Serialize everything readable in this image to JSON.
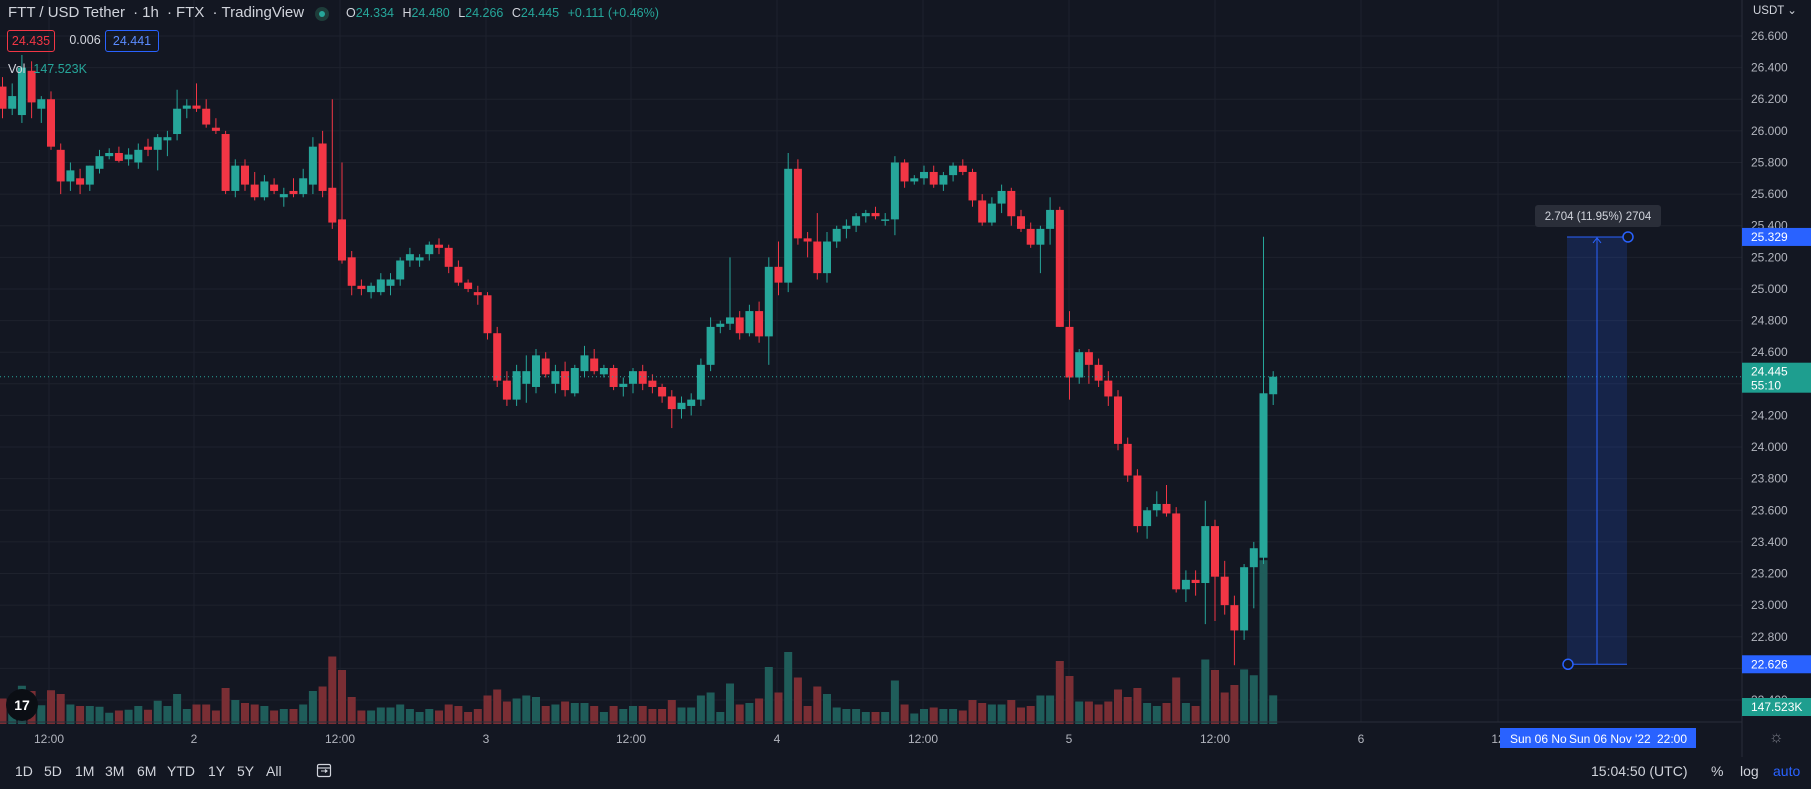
{
  "header": {
    "symbol": "FTT / USD Tether",
    "interval": "1h",
    "exchange": "FTX",
    "source": "TradingView",
    "ohlc": [
      {
        "k": "O",
        "v": "24.334"
      },
      {
        "k": "H",
        "v": "24.480"
      },
      {
        "k": "L",
        "v": "24.266"
      },
      {
        "k": "C",
        "v": "24.445"
      }
    ],
    "change": "+0.111 (+0.46%)",
    "bid": "24.435",
    "spread": "0.006",
    "ask": "24.441",
    "volume_label": "Vol",
    "volume_value": "147.523K"
  },
  "price_axis": {
    "currency": "USDT",
    "ticks": [
      "26.600",
      "26.400",
      "26.200",
      "26.000",
      "25.800",
      "25.600",
      "25.400",
      "25.200",
      "25.000",
      "24.800",
      "24.600",
      "24.400",
      "24.200",
      "24.000",
      "23.800",
      "23.600",
      "23.400",
      "23.200",
      "23.000",
      "22.800",
      "22.600",
      "22.400"
    ],
    "current_price": "24.445",
    "countdown": "55:10",
    "measure_top_label": "25.329",
    "measure_bottom_label": "22.626",
    "volume_label": "147.523K"
  },
  "time_axis": {
    "labels": [
      "12:00",
      "2",
      "12:00",
      "3",
      "12:00",
      "4",
      "12:00",
      "5",
      "12:00",
      "6",
      "12"
    ],
    "crosshair_left": "Sun 06 No",
    "crosshair_right": "Sun 06 Nov '22",
    "crosshair_time": "22:00"
  },
  "measure": {
    "label": "2.704 (11.95%) 2704",
    "top": 25.329,
    "bottom": 22.626
  },
  "bottom_bar": {
    "ranges": [
      "1D",
      "5D",
      "1M",
      "3M",
      "6M",
      "YTD",
      "1Y",
      "5Y",
      "All"
    ],
    "clock": "15:04:50 (UTC)",
    "percent": "%",
    "log": "log",
    "auto": "auto"
  },
  "colors": {
    "up": "#26a69a",
    "down": "#f23645",
    "volume_up": "#1f5d5a",
    "volume_down": "#7a2e34",
    "background": "#131722",
    "grid": "#1e222d",
    "accent": "#2962ff"
  },
  "chart_data": {
    "type": "candlestick",
    "symbol": "FTT / USD Tether",
    "interval": "1h",
    "ylim": [
      22.4,
      26.6
    ],
    "x_labels": [
      "12:00",
      "2",
      "12:00",
      "3",
      "12:00",
      "4",
      "12:00",
      "5",
      "12:00",
      "6",
      "12"
    ],
    "candles": [
      {
        "o": 26.28,
        "h": 26.34,
        "l": 26.08,
        "c": 26.14
      },
      {
        "o": 26.14,
        "h": 26.3,
        "l": 26.1,
        "c": 26.22
      },
      {
        "o": 26.1,
        "h": 26.48,
        "l": 26.05,
        "c": 26.4
      },
      {
        "o": 26.38,
        "h": 26.44,
        "l": 26.08,
        "c": 26.18
      },
      {
        "o": 26.14,
        "h": 26.22,
        "l": 26.05,
        "c": 26.2
      },
      {
        "o": 26.2,
        "h": 26.25,
        "l": 25.88,
        "c": 25.9
      },
      {
        "o": 25.88,
        "h": 25.92,
        "l": 25.6,
        "c": 25.68
      },
      {
        "o": 25.68,
        "h": 25.8,
        "l": 25.62,
        "c": 25.75
      },
      {
        "o": 25.7,
        "h": 25.76,
        "l": 25.6,
        "c": 25.66
      },
      {
        "o": 25.66,
        "h": 25.78,
        "l": 25.62,
        "c": 25.78
      },
      {
        "o": 25.76,
        "h": 25.88,
        "l": 25.73,
        "c": 25.84
      },
      {
        "o": 25.84,
        "h": 25.89,
        "l": 25.82,
        "c": 25.86
      },
      {
        "o": 25.86,
        "h": 25.9,
        "l": 25.8,
        "c": 25.81
      },
      {
        "o": 25.82,
        "h": 25.89,
        "l": 25.78,
        "c": 25.85
      },
      {
        "o": 25.8,
        "h": 25.92,
        "l": 25.76,
        "c": 25.88
      },
      {
        "o": 25.9,
        "h": 25.95,
        "l": 25.84,
        "c": 25.88
      },
      {
        "o": 25.88,
        "h": 25.98,
        "l": 25.75,
        "c": 25.96
      },
      {
        "o": 25.94,
        "h": 26.0,
        "l": 25.84,
        "c": 25.96
      },
      {
        "o": 25.98,
        "h": 26.26,
        "l": 25.94,
        "c": 26.14
      },
      {
        "o": 26.14,
        "h": 26.2,
        "l": 26.08,
        "c": 26.16
      },
      {
        "o": 26.16,
        "h": 26.3,
        "l": 26.12,
        "c": 26.14
      },
      {
        "o": 26.14,
        "h": 26.2,
        "l": 26.02,
        "c": 26.04
      },
      {
        "o": 26.02,
        "h": 26.08,
        "l": 25.98,
        "c": 26.0
      },
      {
        "o": 25.98,
        "h": 26.0,
        "l": 25.6,
        "c": 25.62
      },
      {
        "o": 25.62,
        "h": 25.82,
        "l": 25.58,
        "c": 25.78
      },
      {
        "o": 25.78,
        "h": 25.82,
        "l": 25.62,
        "c": 25.66
      },
      {
        "o": 25.66,
        "h": 25.74,
        "l": 25.56,
        "c": 25.58
      },
      {
        "o": 25.58,
        "h": 25.72,
        "l": 25.56,
        "c": 25.68
      },
      {
        "o": 25.66,
        "h": 25.7,
        "l": 25.6,
        "c": 25.62
      },
      {
        "o": 25.58,
        "h": 25.64,
        "l": 25.52,
        "c": 25.6
      },
      {
        "o": 25.62,
        "h": 25.7,
        "l": 25.58,
        "c": 25.6
      },
      {
        "o": 25.6,
        "h": 25.76,
        "l": 25.58,
        "c": 25.7
      },
      {
        "o": 25.66,
        "h": 25.96,
        "l": 25.6,
        "c": 25.9
      },
      {
        "o": 25.92,
        "h": 26.0,
        "l": 25.58,
        "c": 25.62
      },
      {
        "o": 25.64,
        "h": 26.2,
        "l": 25.38,
        "c": 25.42
      },
      {
        "o": 25.44,
        "h": 25.8,
        "l": 25.16,
        "c": 25.18
      },
      {
        "o": 25.2,
        "h": 25.24,
        "l": 24.96,
        "c": 25.02
      },
      {
        "o": 25.02,
        "h": 25.06,
        "l": 24.96,
        "c": 25.0
      },
      {
        "o": 24.98,
        "h": 25.04,
        "l": 24.94,
        "c": 25.02
      },
      {
        "o": 24.98,
        "h": 25.1,
        "l": 24.96,
        "c": 25.06
      },
      {
        "o": 25.02,
        "h": 25.1,
        "l": 24.96,
        "c": 25.06
      },
      {
        "o": 25.06,
        "h": 25.2,
        "l": 25.02,
        "c": 25.18
      },
      {
        "o": 25.18,
        "h": 25.26,
        "l": 25.14,
        "c": 25.22
      },
      {
        "o": 25.18,
        "h": 25.22,
        "l": 25.14,
        "c": 25.2
      },
      {
        "o": 25.22,
        "h": 25.3,
        "l": 25.18,
        "c": 25.28
      },
      {
        "o": 25.28,
        "h": 25.32,
        "l": 25.22,
        "c": 25.26
      },
      {
        "o": 25.26,
        "h": 25.28,
        "l": 25.1,
        "c": 25.14
      },
      {
        "o": 25.14,
        "h": 25.18,
        "l": 25.02,
        "c": 25.04
      },
      {
        "o": 25.04,
        "h": 25.06,
        "l": 24.98,
        "c": 25.0
      },
      {
        "o": 24.98,
        "h": 25.02,
        "l": 24.9,
        "c": 24.96
      },
      {
        "o": 24.96,
        "h": 24.98,
        "l": 24.68,
        "c": 24.72
      },
      {
        "o": 24.72,
        "h": 24.76,
        "l": 24.38,
        "c": 24.42
      },
      {
        "o": 24.42,
        "h": 24.48,
        "l": 24.26,
        "c": 24.3
      },
      {
        "o": 24.3,
        "h": 24.52,
        "l": 24.26,
        "c": 24.48
      },
      {
        "o": 24.4,
        "h": 24.58,
        "l": 24.28,
        "c": 24.48
      },
      {
        "o": 24.38,
        "h": 24.62,
        "l": 24.34,
        "c": 24.58
      },
      {
        "o": 24.56,
        "h": 24.6,
        "l": 24.44,
        "c": 24.46
      },
      {
        "o": 24.4,
        "h": 24.52,
        "l": 24.34,
        "c": 24.48
      },
      {
        "o": 24.48,
        "h": 24.54,
        "l": 24.32,
        "c": 24.36
      },
      {
        "o": 24.34,
        "h": 24.52,
        "l": 24.32,
        "c": 24.5
      },
      {
        "o": 24.48,
        "h": 24.64,
        "l": 24.44,
        "c": 24.58
      },
      {
        "o": 24.56,
        "h": 24.62,
        "l": 24.46,
        "c": 24.48
      },
      {
        "o": 24.46,
        "h": 24.52,
        "l": 24.44,
        "c": 24.5
      },
      {
        "o": 24.5,
        "h": 24.52,
        "l": 24.36,
        "c": 24.38
      },
      {
        "o": 24.38,
        "h": 24.44,
        "l": 24.32,
        "c": 24.4
      },
      {
        "o": 24.4,
        "h": 24.5,
        "l": 24.34,
        "c": 24.48
      },
      {
        "o": 24.48,
        "h": 24.52,
        "l": 24.36,
        "c": 24.4
      },
      {
        "o": 24.42,
        "h": 24.46,
        "l": 24.34,
        "c": 24.38
      },
      {
        "o": 24.38,
        "h": 24.4,
        "l": 24.28,
        "c": 24.32
      },
      {
        "o": 24.32,
        "h": 24.36,
        "l": 24.12,
        "c": 24.24
      },
      {
        "o": 24.24,
        "h": 24.32,
        "l": 24.18,
        "c": 24.28
      },
      {
        "o": 24.26,
        "h": 24.34,
        "l": 24.2,
        "c": 24.3
      },
      {
        "o": 24.3,
        "h": 24.56,
        "l": 24.26,
        "c": 24.52
      },
      {
        "o": 24.52,
        "h": 24.82,
        "l": 24.48,
        "c": 24.76
      },
      {
        "o": 24.76,
        "h": 24.8,
        "l": 24.72,
        "c": 24.78
      },
      {
        "o": 24.78,
        "h": 25.2,
        "l": 24.74,
        "c": 24.82
      },
      {
        "o": 24.82,
        "h": 24.86,
        "l": 24.68,
        "c": 24.72
      },
      {
        "o": 24.72,
        "h": 24.9,
        "l": 24.7,
        "c": 24.86
      },
      {
        "o": 24.86,
        "h": 24.92,
        "l": 24.66,
        "c": 24.7
      },
      {
        "o": 24.7,
        "h": 25.2,
        "l": 24.52,
        "c": 25.14
      },
      {
        "o": 25.14,
        "h": 25.3,
        "l": 24.96,
        "c": 25.04
      },
      {
        "o": 25.04,
        "h": 25.86,
        "l": 24.98,
        "c": 25.76
      },
      {
        "o": 25.76,
        "h": 25.82,
        "l": 25.28,
        "c": 25.32
      },
      {
        "o": 25.32,
        "h": 25.36,
        "l": 25.2,
        "c": 25.3
      },
      {
        "o": 25.3,
        "h": 25.48,
        "l": 25.06,
        "c": 25.1
      },
      {
        "o": 25.1,
        "h": 25.36,
        "l": 25.04,
        "c": 25.3
      },
      {
        "o": 25.3,
        "h": 25.4,
        "l": 25.26,
        "c": 25.38
      },
      {
        "o": 25.38,
        "h": 25.44,
        "l": 25.32,
        "c": 25.4
      },
      {
        "o": 25.4,
        "h": 25.48,
        "l": 25.36,
        "c": 25.46
      },
      {
        "o": 25.46,
        "h": 25.5,
        "l": 25.42,
        "c": 25.48
      },
      {
        "o": 25.48,
        "h": 25.52,
        "l": 25.44,
        "c": 25.46
      },
      {
        "o": 25.44,
        "h": 25.48,
        "l": 25.4,
        "c": 25.44
      },
      {
        "o": 25.44,
        "h": 25.84,
        "l": 25.34,
        "c": 25.8
      },
      {
        "o": 25.8,
        "h": 25.82,
        "l": 25.64,
        "c": 25.68
      },
      {
        "o": 25.68,
        "h": 25.72,
        "l": 25.66,
        "c": 25.7
      },
      {
        "o": 25.7,
        "h": 25.78,
        "l": 25.66,
        "c": 25.74
      },
      {
        "o": 25.74,
        "h": 25.78,
        "l": 25.64,
        "c": 25.66
      },
      {
        "o": 25.66,
        "h": 25.74,
        "l": 25.62,
        "c": 25.72
      },
      {
        "o": 25.72,
        "h": 25.8,
        "l": 25.68,
        "c": 25.78
      },
      {
        "o": 25.78,
        "h": 25.82,
        "l": 25.72,
        "c": 25.74
      },
      {
        "o": 25.74,
        "h": 25.76,
        "l": 25.52,
        "c": 25.56
      },
      {
        "o": 25.56,
        "h": 25.6,
        "l": 25.4,
        "c": 25.42
      },
      {
        "o": 25.42,
        "h": 25.58,
        "l": 25.4,
        "c": 25.54
      },
      {
        "o": 25.54,
        "h": 25.66,
        "l": 25.48,
        "c": 25.62
      },
      {
        "o": 25.62,
        "h": 25.64,
        "l": 25.4,
        "c": 25.46
      },
      {
        "o": 25.46,
        "h": 25.5,
        "l": 25.36,
        "c": 25.38
      },
      {
        "o": 25.38,
        "h": 25.42,
        "l": 25.26,
        "c": 25.28
      },
      {
        "o": 25.28,
        "h": 25.4,
        "l": 25.1,
        "c": 25.38
      },
      {
        "o": 25.38,
        "h": 25.58,
        "l": 25.28,
        "c": 25.5
      },
      {
        "o": 25.5,
        "h": 25.52,
        "l": 24.76,
        "c": 24.76
      },
      {
        "o": 24.76,
        "h": 24.86,
        "l": 24.3,
        "c": 24.44
      },
      {
        "o": 24.44,
        "h": 24.62,
        "l": 24.4,
        "c": 24.6
      },
      {
        "o": 24.6,
        "h": 24.62,
        "l": 24.4,
        "c": 24.52
      },
      {
        "o": 24.52,
        "h": 24.56,
        "l": 24.38,
        "c": 24.42
      },
      {
        "o": 24.42,
        "h": 24.48,
        "l": 24.26,
        "c": 24.32
      },
      {
        "o": 24.32,
        "h": 24.36,
        "l": 23.98,
        "c": 24.02
      },
      {
        "o": 24.02,
        "h": 24.06,
        "l": 23.78,
        "c": 23.82
      },
      {
        "o": 23.82,
        "h": 23.86,
        "l": 23.46,
        "c": 23.5
      },
      {
        "o": 23.5,
        "h": 23.62,
        "l": 23.42,
        "c": 23.6
      },
      {
        "o": 23.6,
        "h": 23.72,
        "l": 23.56,
        "c": 23.64
      },
      {
        "o": 23.64,
        "h": 23.76,
        "l": 23.56,
        "c": 23.58
      },
      {
        "o": 23.58,
        "h": 23.62,
        "l": 23.08,
        "c": 23.1
      },
      {
        "o": 23.1,
        "h": 23.22,
        "l": 23.02,
        "c": 23.16
      },
      {
        "o": 23.16,
        "h": 23.22,
        "l": 23.06,
        "c": 23.14
      },
      {
        "o": 23.14,
        "h": 23.66,
        "l": 22.88,
        "c": 23.5
      },
      {
        "o": 23.5,
        "h": 23.54,
        "l": 22.9,
        "c": 23.18
      },
      {
        "o": 23.18,
        "h": 23.28,
        "l": 22.94,
        "c": 23.0
      },
      {
        "o": 23.0,
        "h": 23.06,
        "l": 22.62,
        "c": 22.84
      },
      {
        "o": 22.84,
        "h": 23.26,
        "l": 22.78,
        "c": 23.24
      },
      {
        "o": 23.24,
        "h": 23.4,
        "l": 22.98,
        "c": 23.36
      },
      {
        "o": 23.3,
        "h": 25.33,
        "l": 23.26,
        "c": 24.34
      },
      {
        "o": 24.334,
        "h": 24.48,
        "l": 24.266,
        "c": 24.445
      }
    ],
    "volume_max": "147.523K"
  }
}
